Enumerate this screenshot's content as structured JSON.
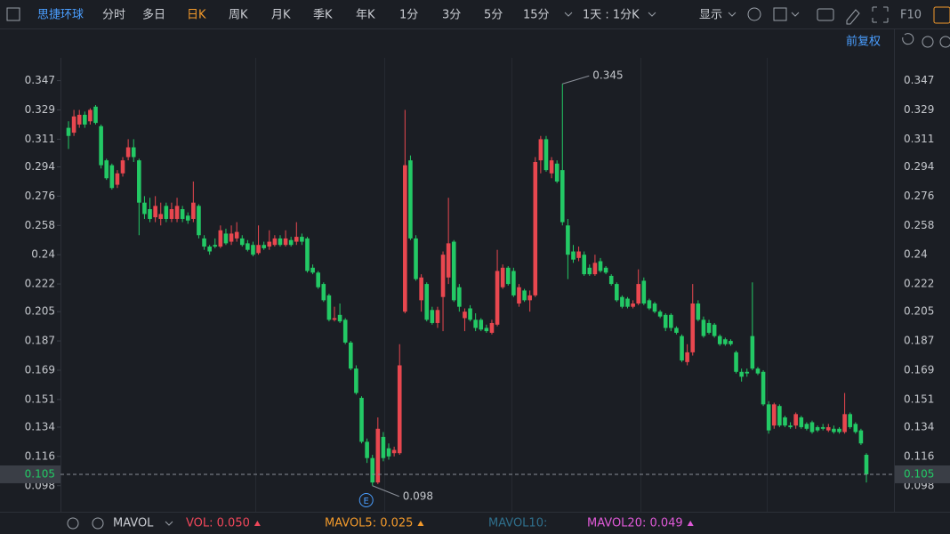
{
  "toolbar": {
    "stock": "思捷环球",
    "items": [
      "分时",
      "多日",
      "日K",
      "周K",
      "月K",
      "季K",
      "年K",
      "1分",
      "3分",
      "5分",
      "15分",
      "1天 : 1分K"
    ],
    "display": "显示",
    "f10": "F10",
    "adjust": "前复权"
  },
  "chart_data": {
    "type": "candlestick",
    "up_color": "#e8474f",
    "down_color": "#23c965",
    "ylim": [
      0.082,
      0.361
    ],
    "yticks": [
      0.347,
      0.329,
      0.311,
      0.294,
      0.276,
      0.258,
      0.24,
      0.222,
      0.205,
      0.187,
      0.169,
      0.151,
      0.134,
      0.116,
      0.098
    ],
    "max_label": 0.345,
    "min_label": 0.098,
    "current_price": 0.105,
    "event_marker": "E",
    "candles": [
      [
        0.318,
        0.322,
        0.305,
        0.313
      ],
      [
        0.315,
        0.329,
        0.313,
        0.325
      ],
      [
        0.32,
        0.329,
        0.318,
        0.326
      ],
      [
        0.326,
        0.328,
        0.318,
        0.32
      ],
      [
        0.322,
        0.33,
        0.32,
        0.329
      ],
      [
        0.331,
        0.332,
        0.32,
        0.321
      ],
      [
        0.319,
        0.32,
        0.293,
        0.295
      ],
      [
        0.298,
        0.299,
        0.286,
        0.287
      ],
      [
        0.295,
        0.296,
        0.28,
        0.281
      ],
      [
        0.283,
        0.292,
        0.281,
        0.29
      ],
      [
        0.29,
        0.3,
        0.288,
        0.298
      ],
      [
        0.3,
        0.311,
        0.298,
        0.306
      ],
      [
        0.306,
        0.311,
        0.297,
        0.3
      ],
      [
        0.298,
        0.299,
        0.252,
        0.272
      ],
      [
        0.272,
        0.276,
        0.262,
        0.265
      ],
      [
        0.268,
        0.275,
        0.26,
        0.262
      ],
      [
        0.263,
        0.276,
        0.26,
        0.27
      ],
      [
        0.262,
        0.272,
        0.258,
        0.265
      ],
      [
        0.27,
        0.272,
        0.26,
        0.262
      ],
      [
        0.262,
        0.272,
        0.26,
        0.268
      ],
      [
        0.262,
        0.275,
        0.26,
        0.27
      ],
      [
        0.268,
        0.27,
        0.26,
        0.262
      ],
      [
        0.264,
        0.266,
        0.259,
        0.261
      ],
      [
        0.262,
        0.285,
        0.26,
        0.272
      ],
      [
        0.27,
        0.271,
        0.25,
        0.252
      ],
      [
        0.25,
        0.252,
        0.243,
        0.245
      ],
      [
        0.245,
        0.246,
        0.24,
        0.242
      ],
      [
        0.246,
        0.25,
        0.244,
        0.245
      ],
      [
        0.245,
        0.258,
        0.244,
        0.255
      ],
      [
        0.253,
        0.256,
        0.246,
        0.247
      ],
      [
        0.248,
        0.258,
        0.246,
        0.253
      ],
      [
        0.25,
        0.26,
        0.248,
        0.254
      ],
      [
        0.25,
        0.252,
        0.245,
        0.246
      ],
      [
        0.247,
        0.249,
        0.242,
        0.243
      ],
      [
        0.246,
        0.248,
        0.239,
        0.24
      ],
      [
        0.241,
        0.258,
        0.24,
        0.246
      ],
      [
        0.246,
        0.248,
        0.243,
        0.244
      ],
      [
        0.245,
        0.255,
        0.243,
        0.248
      ],
      [
        0.246,
        0.252,
        0.245,
        0.25
      ],
      [
        0.25,
        0.252,
        0.245,
        0.246
      ],
      [
        0.246,
        0.255,
        0.245,
        0.25
      ],
      [
        0.249,
        0.251,
        0.245,
        0.246
      ],
      [
        0.248,
        0.26,
        0.246,
        0.251
      ],
      [
        0.251,
        0.253,
        0.246,
        0.248
      ],
      [
        0.25,
        0.251,
        0.229,
        0.23
      ],
      [
        0.232,
        0.234,
        0.228,
        0.229
      ],
      [
        0.229,
        0.23,
        0.219,
        0.22
      ],
      [
        0.222,
        0.223,
        0.211,
        0.212
      ],
      [
        0.215,
        0.216,
        0.199,
        0.2
      ],
      [
        0.2,
        0.208,
        0.199,
        0.201
      ],
      [
        0.203,
        0.21,
        0.198,
        0.199
      ],
      [
        0.2,
        0.201,
        0.185,
        0.186
      ],
      [
        0.186,
        0.187,
        0.169,
        0.17
      ],
      [
        0.17,
        0.172,
        0.154,
        0.155
      ],
      [
        0.152,
        0.153,
        0.124,
        0.125
      ],
      [
        0.125,
        0.127,
        0.112,
        0.115
      ],
      [
        0.115,
        0.117,
        0.098,
        0.1
      ],
      [
        0.1,
        0.14,
        0.099,
        0.133
      ],
      [
        0.128,
        0.131,
        0.113,
        0.115
      ],
      [
        0.121,
        0.124,
        0.114,
        0.116
      ],
      [
        0.118,
        0.122,
        0.116,
        0.12
      ],
      [
        0.118,
        0.185,
        0.117,
        0.172
      ],
      [
        0.205,
        0.329,
        0.204,
        0.295
      ],
      [
        0.298,
        0.301,
        0.249,
        0.25
      ],
      [
        0.25,
        0.252,
        0.224,
        0.225
      ],
      [
        0.212,
        0.228,
        0.205,
        0.226
      ],
      [
        0.222,
        0.223,
        0.199,
        0.2
      ],
      [
        0.206,
        0.208,
        0.197,
        0.198
      ],
      [
        0.198,
        0.208,
        0.195,
        0.206
      ],
      [
        0.214,
        0.242,
        0.193,
        0.24
      ],
      [
        0.226,
        0.275,
        0.222,
        0.247
      ],
      [
        0.248,
        0.249,
        0.211,
        0.212
      ],
      [
        0.22,
        0.222,
        0.205,
        0.208
      ],
      [
        0.201,
        0.207,
        0.193,
        0.205
      ],
      [
        0.207,
        0.209,
        0.199,
        0.2
      ],
      [
        0.2,
        0.204,
        0.193,
        0.195
      ],
      [
        0.2,
        0.201,
        0.193,
        0.194
      ],
      [
        0.195,
        0.197,
        0.192,
        0.193
      ],
      [
        0.192,
        0.2,
        0.191,
        0.198
      ],
      [
        0.197,
        0.243,
        0.196,
        0.23
      ],
      [
        0.22,
        0.234,
        0.219,
        0.232
      ],
      [
        0.232,
        0.233,
        0.221,
        0.222
      ],
      [
        0.23,
        0.232,
        0.214,
        0.215
      ],
      [
        0.21,
        0.222,
        0.208,
        0.22
      ],
      [
        0.218,
        0.219,
        0.211,
        0.212
      ],
      [
        0.212,
        0.218,
        0.205,
        0.215
      ],
      [
        0.215,
        0.3,
        0.214,
        0.297
      ],
      [
        0.298,
        0.313,
        0.29,
        0.311
      ],
      [
        0.311,
        0.313,
        0.291,
        0.292
      ],
      [
        0.29,
        0.3,
        0.287,
        0.298
      ],
      [
        0.296,
        0.298,
        0.284,
        0.285
      ],
      [
        0.292,
        0.345,
        0.258,
        0.26
      ],
      [
        0.258,
        0.262,
        0.225,
        0.24
      ],
      [
        0.242,
        0.246,
        0.235,
        0.237
      ],
      [
        0.238,
        0.245,
        0.236,
        0.242
      ],
      [
        0.24,
        0.242,
        0.227,
        0.228
      ],
      [
        0.232,
        0.234,
        0.227,
        0.228
      ],
      [
        0.228,
        0.24,
        0.227,
        0.235
      ],
      [
        0.236,
        0.238,
        0.229,
        0.23
      ],
      [
        0.232,
        0.233,
        0.228,
        0.229
      ],
      [
        0.227,
        0.228,
        0.221,
        0.222
      ],
      [
        0.222,
        0.223,
        0.211,
        0.212
      ],
      [
        0.214,
        0.215,
        0.207,
        0.208
      ],
      [
        0.213,
        0.214,
        0.207,
        0.208
      ],
      [
        0.208,
        0.212,
        0.207,
        0.21
      ],
      [
        0.21,
        0.231,
        0.209,
        0.222
      ],
      [
        0.224,
        0.226,
        0.209,
        0.21
      ],
      [
        0.212,
        0.213,
        0.206,
        0.207
      ],
      [
        0.21,
        0.211,
        0.204,
        0.205
      ],
      [
        0.205,
        0.206,
        0.201,
        0.202
      ],
      [
        0.203,
        0.204,
        0.193,
        0.195
      ],
      [
        0.203,
        0.204,
        0.193,
        0.195
      ],
      [
        0.195,
        0.196,
        0.191,
        0.192
      ],
      [
        0.19,
        0.191,
        0.174,
        0.175
      ],
      [
        0.174,
        0.185,
        0.172,
        0.18
      ],
      [
        0.18,
        0.222,
        0.178,
        0.21
      ],
      [
        0.21,
        0.212,
        0.199,
        0.2
      ],
      [
        0.2,
        0.202,
        0.189,
        0.19
      ],
      [
        0.198,
        0.2,
        0.191,
        0.192
      ],
      [
        0.197,
        0.198,
        0.189,
        0.19
      ],
      [
        0.19,
        0.191,
        0.184,
        0.185
      ],
      [
        0.188,
        0.189,
        0.184,
        0.185
      ],
      [
        0.187,
        0.188,
        0.184,
        0.185
      ],
      [
        0.18,
        0.181,
        0.167,
        0.168
      ],
      [
        0.168,
        0.17,
        0.162,
        0.165
      ],
      [
        0.168,
        0.17,
        0.165,
        0.167
      ],
      [
        0.19,
        0.223,
        0.169,
        0.17
      ],
      [
        0.17,
        0.171,
        0.166,
        0.167
      ],
      [
        0.168,
        0.169,
        0.147,
        0.148
      ],
      [
        0.148,
        0.15,
        0.13,
        0.132
      ],
      [
        0.135,
        0.149,
        0.133,
        0.148
      ],
      [
        0.147,
        0.148,
        0.134,
        0.135
      ],
      [
        0.14,
        0.141,
        0.134,
        0.135
      ],
      [
        0.135,
        0.137,
        0.133,
        0.134
      ],
      [
        0.135,
        0.143,
        0.133,
        0.142
      ],
      [
        0.14,
        0.141,
        0.133,
        0.134
      ],
      [
        0.136,
        0.137,
        0.132,
        0.133
      ],
      [
        0.137,
        0.138,
        0.13,
        0.131
      ],
      [
        0.134,
        0.135,
        0.131,
        0.132
      ],
      [
        0.134,
        0.136,
        0.132,
        0.133
      ],
      [
        0.132,
        0.136,
        0.131,
        0.134
      ],
      [
        0.133,
        0.135,
        0.13,
        0.131
      ],
      [
        0.133,
        0.134,
        0.13,
        0.131
      ],
      [
        0.131,
        0.155,
        0.13,
        0.142
      ],
      [
        0.142,
        0.143,
        0.133,
        0.134
      ],
      [
        0.136,
        0.137,
        0.13,
        0.131
      ],
      [
        0.132,
        0.133,
        0.123,
        0.124
      ],
      [
        0.117,
        0.118,
        0.1,
        0.105
      ]
    ],
    "indicator_name": "MAVOL",
    "indicators": [
      {
        "text": "VOL: 0.050",
        "color": "#f0475a"
      },
      {
        "text": "MAVOL5: 0.025",
        "color": "#f39a2b"
      },
      {
        "text": "MAVOL10:",
        "color": "#2f6f8c"
      },
      {
        "text": "MAVOL20: 0.049",
        "color": "#e05ad8"
      }
    ]
  }
}
